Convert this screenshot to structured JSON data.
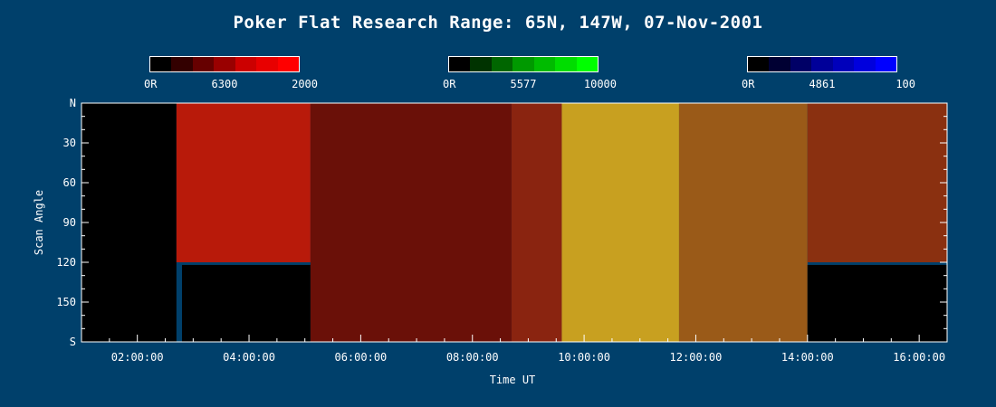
{
  "chart_data": {
    "type": "heatmap",
    "title": "Poker Flat Research Range: 65N, 147W, 07-Nov-2001",
    "xlabel": "Time UT",
    "ylabel": "Scan Angle",
    "xlim": [
      "01:00:00",
      "16:30:00"
    ],
    "ylim": [
      "N",
      "S"
    ],
    "x_ticks": [
      "02:00:00",
      "04:00:00",
      "06:00:00",
      "08:00:00",
      "10:00:00",
      "12:00:00",
      "14:00:00",
      "16:00:00"
    ],
    "x_tick_hours": [
      2,
      4,
      6,
      8,
      10,
      12,
      14,
      16
    ],
    "y_ticks": [
      "N",
      "30",
      "60",
      "90",
      "120",
      "150",
      "S"
    ],
    "y_tick_values": [
      0,
      30,
      60,
      90,
      120,
      150,
      180
    ],
    "colorbars": [
      {
        "min_label": "0R",
        "mid_label": "6300",
        "max_label": "2000",
        "channel": "red",
        "colors": [
          "#000000",
          "#330000",
          "#660000",
          "#990000",
          "#cc0000",
          "#e80000",
          "#ff0000"
        ]
      },
      {
        "min_label": "0R",
        "mid_label": "5577",
        "max_label": "10000",
        "channel": "green",
        "colors": [
          "#000000",
          "#003300",
          "#006600",
          "#009900",
          "#00bb00",
          "#00dd00",
          "#00ff00"
        ]
      },
      {
        "min_label": "0R",
        "mid_label": "4861",
        "max_label": "100",
        "channel": "blue",
        "colors": [
          "#000000",
          "#000033",
          "#000066",
          "#000099",
          "#0000bb",
          "#0000dd",
          "#0000ff"
        ]
      }
    ],
    "regions": [
      {
        "from": 1.0,
        "to": 2.7,
        "angle_from": 0,
        "angle_to": 180,
        "color": "#000000"
      },
      {
        "from": 2.7,
        "to": 5.1,
        "angle_from": 0,
        "angle_to": 120,
        "color": "#b81a0a"
      },
      {
        "from": 2.8,
        "to": 5.1,
        "angle_from": 122,
        "angle_to": 180,
        "color": "#000000"
      },
      {
        "from": 5.1,
        "to": 8.7,
        "angle_from": 0,
        "angle_to": 180,
        "color": "#6a1008"
      },
      {
        "from": 8.7,
        "to": 9.6,
        "angle_from": 0,
        "angle_to": 180,
        "color": "#8a2410"
      },
      {
        "from": 9.6,
        "to": 11.7,
        "angle_from": 0,
        "angle_to": 180,
        "color": "#c8a020"
      },
      {
        "from": 11.7,
        "to": 14.0,
        "angle_from": 0,
        "angle_to": 180,
        "color": "#9a5a18"
      },
      {
        "from": 14.0,
        "to": 16.5,
        "angle_from": 0,
        "angle_to": 120,
        "color": "#8a3010"
      },
      {
        "from": 14.0,
        "to": 16.5,
        "angle_from": 122,
        "angle_to": 180,
        "color": "#000000"
      }
    ]
  }
}
